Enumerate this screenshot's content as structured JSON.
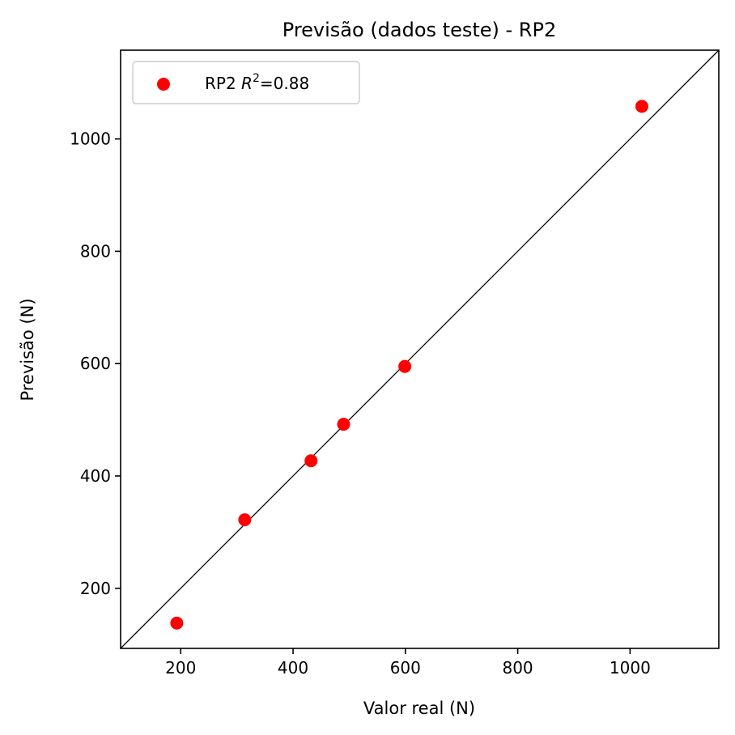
{
  "chart_data": {
    "type": "scatter",
    "title": "Previsão (dados teste) - RP2",
    "xlabel": "Valor real (N)",
    "ylabel": "Previsão (N)",
    "xlim": [
      93,
      1158
    ],
    "ylim": [
      93,
      1158
    ],
    "x_ticks": [
      200,
      400,
      600,
      800,
      1000
    ],
    "y_ticks": [
      200,
      400,
      600,
      800,
      1000
    ],
    "grid": false,
    "legend": {
      "position": "top-left",
      "prefix": "RP2 ",
      "r": "R",
      "sup": "2",
      "suffix": "=0.88"
    },
    "reference_line": "y = x",
    "series": [
      {
        "name": "RP2 R²=0.88",
        "color": "#ff0000",
        "points": [
          {
            "x": 193,
            "y": 138
          },
          {
            "x": 314,
            "y": 322
          },
          {
            "x": 432,
            "y": 427
          },
          {
            "x": 490,
            "y": 492
          },
          {
            "x": 599,
            "y": 595
          },
          {
            "x": 1021,
            "y": 1058
          }
        ]
      }
    ]
  }
}
